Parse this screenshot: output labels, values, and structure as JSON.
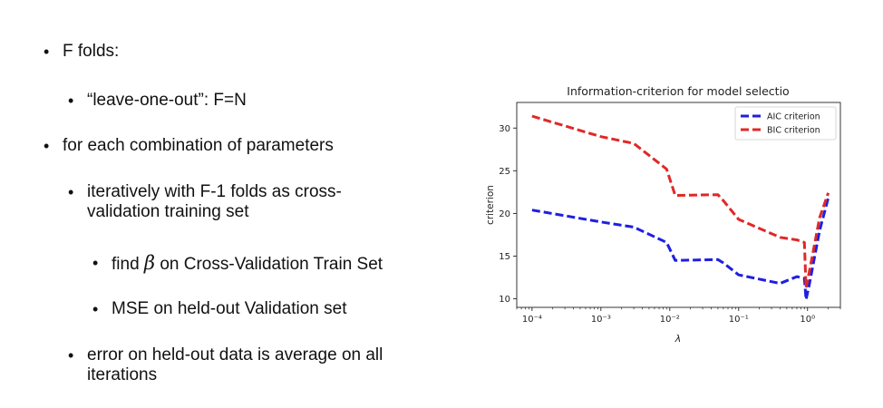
{
  "bullets": {
    "f_folds": "F folds:",
    "leave_one_out": "“leave-one-out”: F=N",
    "for_each": "for each combination of parameters",
    "iteratively_line1": "iteratively with F-1 folds as cross-",
    "iteratively_line2": "validation training set",
    "find_prefix": "find",
    "find_beta": "β",
    "find_suffix": "on Cross-Validation Train Set",
    "mse": "MSE on held-out Validation set",
    "error_line1": "error on held-out data is average on all",
    "error_line2": "iterations"
  },
  "chart_data": {
    "type": "line",
    "title": "Information-criterion for model selectio",
    "xlabel": "λ",
    "ylabel": "criterion",
    "xscale": "log",
    "xlim": [
      6e-05,
      3
    ],
    "ylim": [
      9,
      33
    ],
    "yticks": [
      10,
      15,
      20,
      25,
      30
    ],
    "xticks": [
      0.0001,
      0.001,
      0.01,
      0.1,
      1
    ],
    "xtick_labels": [
      "10⁻⁴",
      "10⁻³",
      "10⁻²",
      "10⁻¹",
      "10⁰"
    ],
    "grid": false,
    "legend": "top-right",
    "series": [
      {
        "name": "AIC criterion",
        "color": "#1f1fe0",
        "x": [
          0.0001,
          0.001,
          0.003,
          0.009,
          0.012,
          0.05,
          0.06,
          0.1,
          0.4,
          0.7,
          0.9,
          0.95,
          1.05,
          1.5,
          2.0
        ],
        "y": [
          20.4,
          19.0,
          18.4,
          16.6,
          14.5,
          14.6,
          14.2,
          12.8,
          11.8,
          12.6,
          12.4,
          9.9,
          11.5,
          18.0,
          21.8
        ]
      },
      {
        "name": "BIC criterion",
        "color": "#e02828",
        "x": [
          0.0001,
          0.001,
          0.003,
          0.009,
          0.012,
          0.05,
          0.06,
          0.1,
          0.4,
          0.7,
          0.9,
          0.95,
          1.05,
          1.5,
          2.0
        ],
        "y": [
          31.4,
          29.0,
          28.2,
          25.2,
          22.1,
          22.2,
          21.5,
          19.3,
          17.2,
          16.9,
          16.6,
          11.3,
          13.0,
          19.5,
          22.4
        ]
      }
    ]
  }
}
